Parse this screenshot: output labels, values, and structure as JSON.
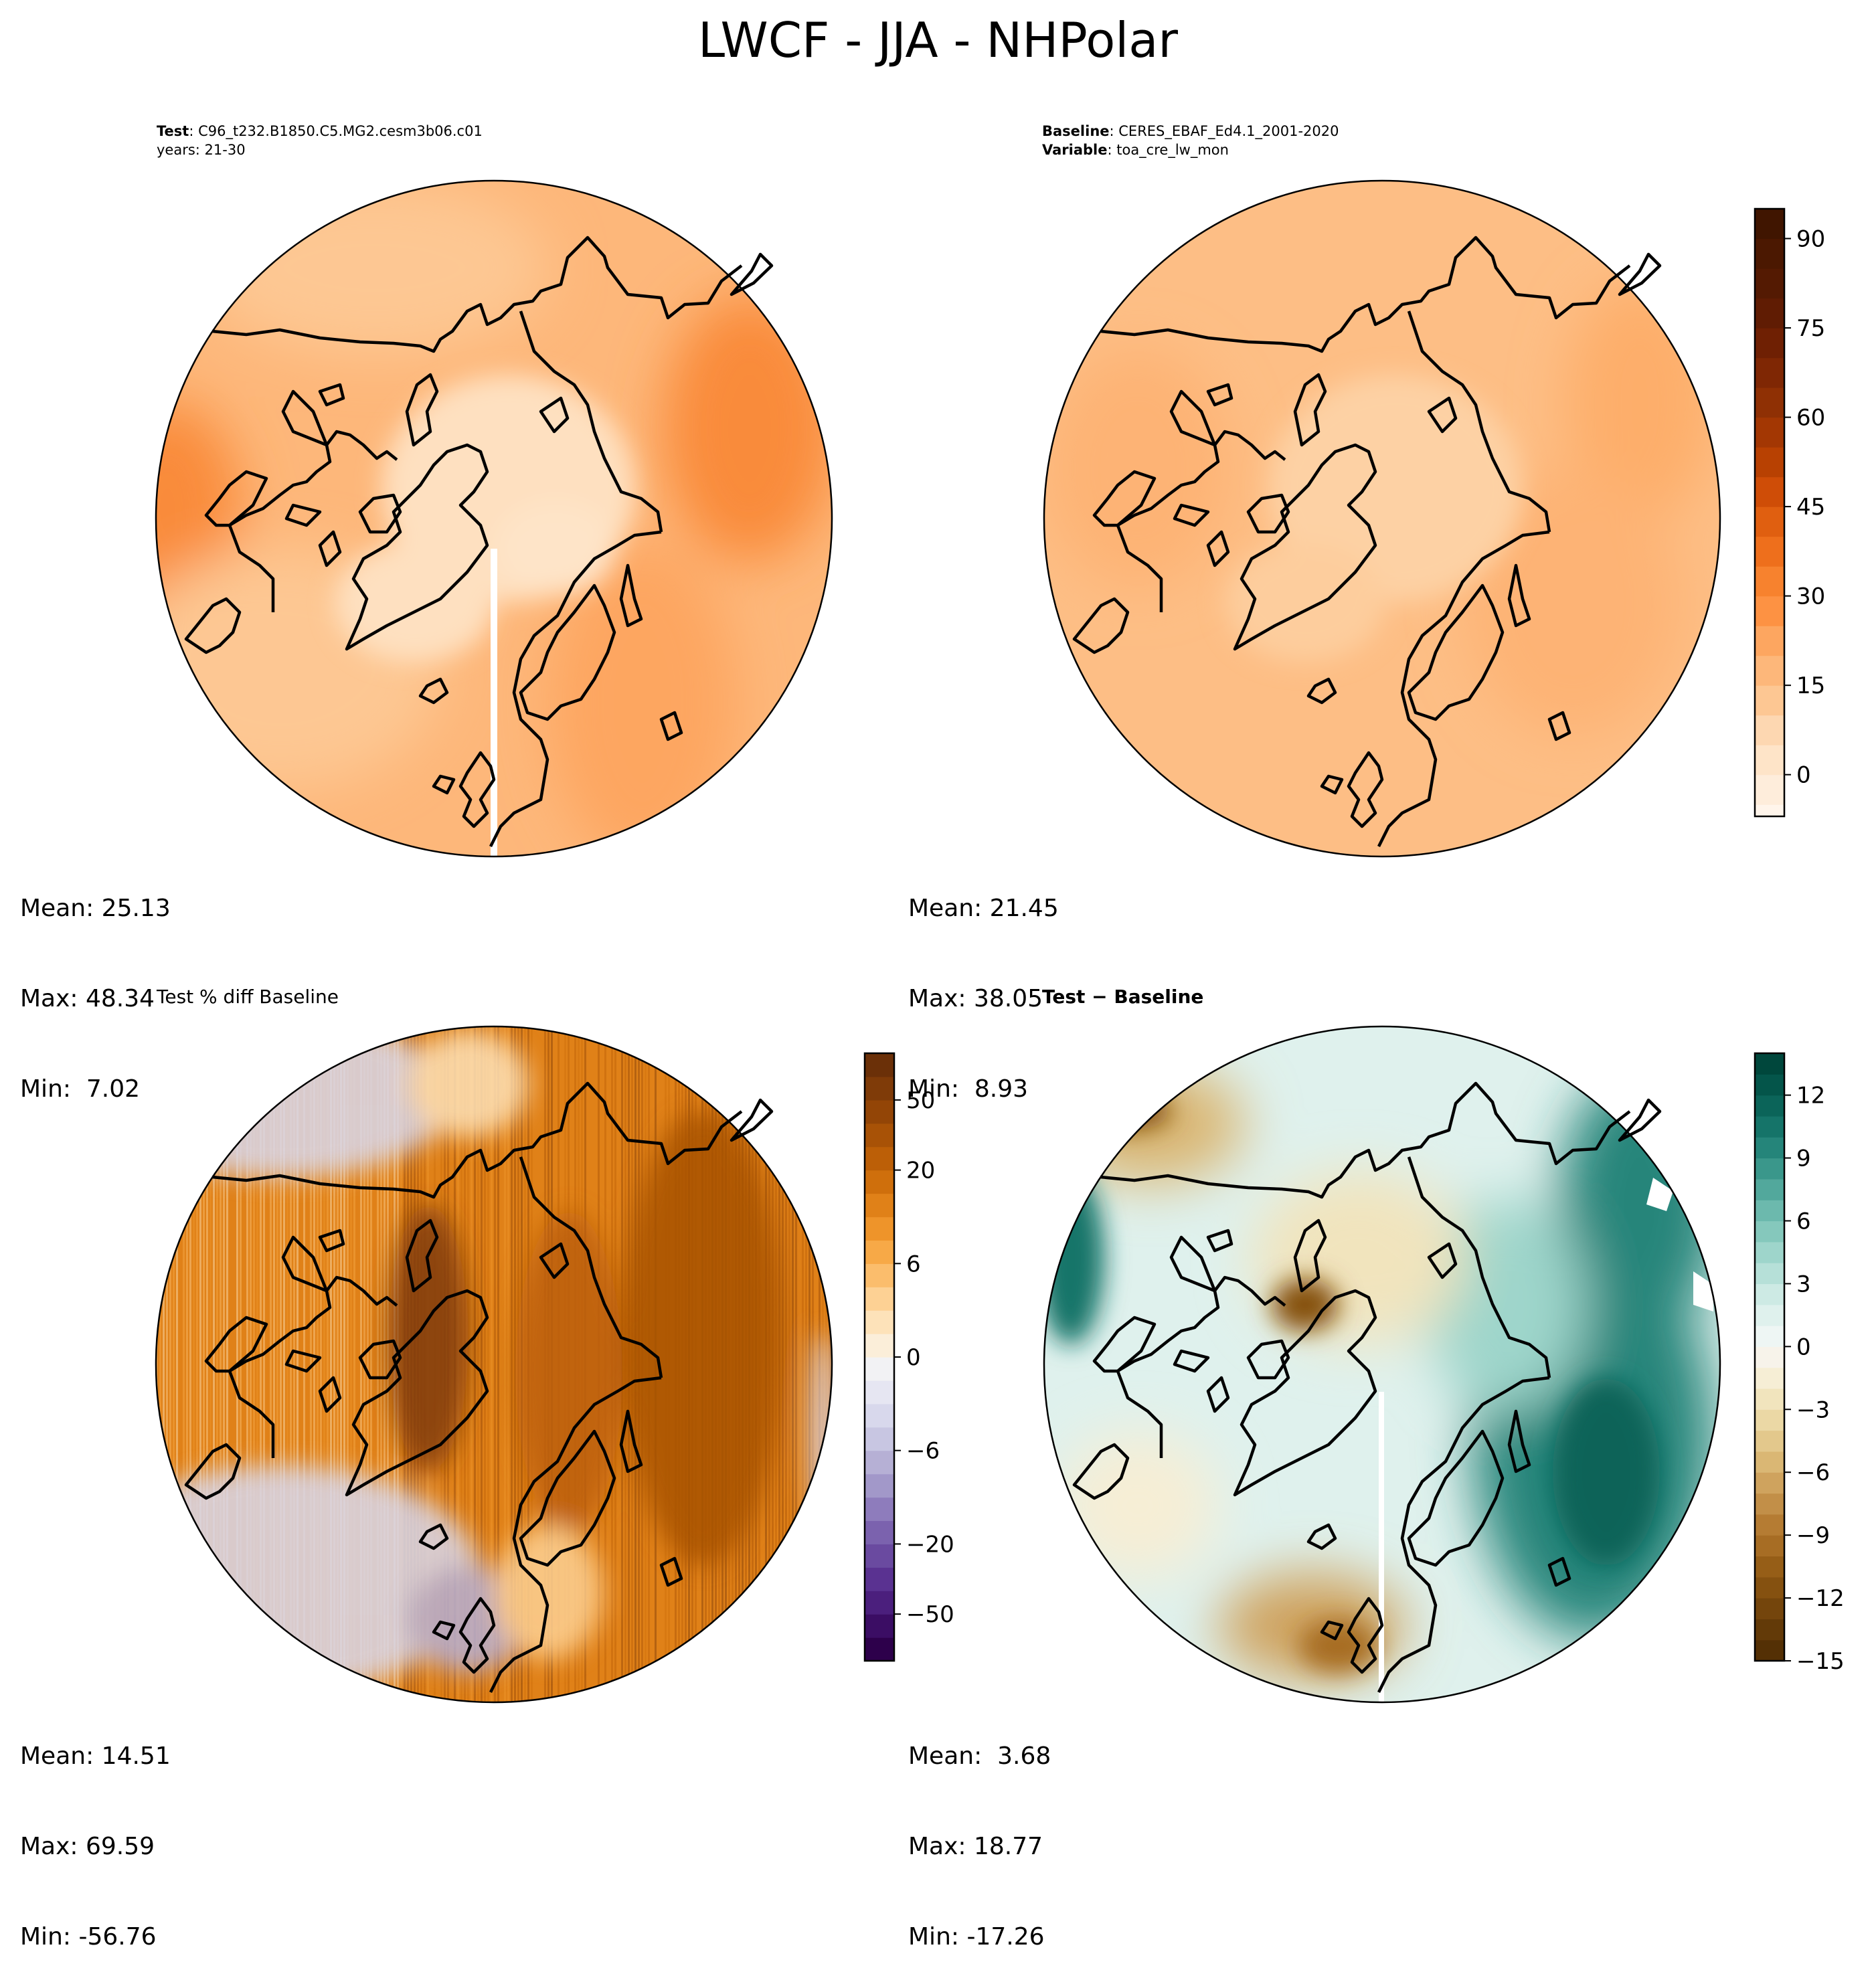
{
  "suptitle": "LWCF - JJA - NHPolar",
  "panels": [
    {
      "id": "test",
      "title_lines": [
        {
          "bold": "Test",
          "text": ": C96_t232.B1850.C5.MG2.cesm3b06.c01"
        },
        {
          "bold": "",
          "text": "years: 21-30"
        }
      ],
      "stats": {
        "mean": "Mean: 25.13",
        "max": "Max: 48.34",
        "min": "Min:  7.02"
      }
    },
    {
      "id": "baseline",
      "title_lines": [
        {
          "bold": "Baseline",
          "text": ": CERES_EBAF_Ed4.1_2001-2020"
        },
        {
          "bold": "Variable",
          "text": ": toa_cre_lw_mon"
        }
      ],
      "stats": {
        "mean": "Mean: 21.45",
        "max": "Max: 38.05",
        "min": "Min:  8.93"
      }
    },
    {
      "id": "pctdiff",
      "title_lines": [
        {
          "bold": "",
          "text": "Test % diff Baseline"
        }
      ],
      "stats": {
        "mean": "Mean: 14.51",
        "max": "Max: 69.59",
        "min": "Min: -56.76"
      }
    },
    {
      "id": "diff",
      "title_lines": [
        {
          "bold": "Test − Baseline",
          "text": ""
        }
      ],
      "stats": {
        "mean": "Mean:  3.68",
        "max": "Max: 18.77",
        "min": "Min: -17.26"
      }
    }
  ],
  "chart_data": [
    {
      "type": "heatmap",
      "panel": "test",
      "projection": "north-polar-stereographic",
      "mean": 25.13,
      "max": 48.34,
      "min": 7.02,
      "colormap": "Oranges",
      "colorbar": {
        "shared_with": "baseline"
      }
    },
    {
      "type": "heatmap",
      "panel": "baseline",
      "projection": "north-polar-stereographic",
      "mean": 21.45,
      "max": 38.05,
      "min": 8.93,
      "colormap": "Oranges",
      "colorbar": {
        "range": [
          -7,
          95
        ],
        "ticks": [
          0,
          15,
          30,
          45,
          60,
          75,
          90
        ],
        "tick_labels": [
          "0",
          "15",
          "30",
          "45",
          "60",
          "75",
          "90"
        ],
        "levels": [
          -7,
          -5,
          0,
          5,
          10,
          15,
          20,
          25,
          30,
          35,
          40,
          45,
          50,
          55,
          60,
          65,
          70,
          75,
          80,
          85,
          90,
          95
        ],
        "colors": [
          "#fff5eb",
          "#feeddb",
          "#fee4c8",
          "#fdd7b1",
          "#fdc793",
          "#fdb77a",
          "#fda660",
          "#fd9243",
          "#f7822e",
          "#ee6f1c",
          "#e05f10",
          "#cf4d07",
          "#b84102",
          "#a33703",
          "#8f3004",
          "#7f2704",
          "#6f2003",
          "#601c03",
          "#541a02",
          "#4b1801",
          "#401500"
        ]
      }
    },
    {
      "type": "heatmap",
      "panel": "pctdiff",
      "projection": "north-polar-stereographic",
      "mean": 14.51,
      "max": 69.59,
      "min": -56.76,
      "colormap": "PuOr_r",
      "colorbar": {
        "levels": [
          -100,
          -75,
          -50,
          -40,
          -30,
          -20,
          -15,
          -10,
          -8,
          -6,
          -4,
          -2,
          -1,
          0,
          1,
          2,
          4,
          6,
          8,
          10,
          15,
          20,
          30,
          40,
          50,
          75,
          100
        ],
        "ticks": [
          -50,
          -20,
          -6,
          0,
          6,
          20,
          50
        ],
        "tick_labels": [
          "−50",
          "−20",
          "−6",
          "0",
          "6",
          "20",
          "50"
        ],
        "colors": [
          "#2d004b",
          "#3b0d64",
          "#4b1f7d",
          "#5a3291",
          "#6a4aa0",
          "#7b62ae",
          "#8e7cbc",
          "#a298c9",
          "#b6b0d5",
          "#c8c6e2",
          "#d8d8ec",
          "#e6e6f2",
          "#f2f2f4",
          "#fbeed9",
          "#fde2b9",
          "#fdd194",
          "#fbbd6c",
          "#f7a947",
          "#ee942a",
          "#e08118",
          "#cf6f0c",
          "#bc5f07",
          "#a85206",
          "#934506",
          "#7f3b08",
          "#6b3008"
        ]
      }
    },
    {
      "type": "heatmap",
      "panel": "diff",
      "projection": "north-polar-stereographic",
      "mean": 3.68,
      "max": 18.77,
      "min": -17.26,
      "colormap": "BrBG",
      "colorbar": {
        "range": [
          -15,
          14
        ],
        "ticks": [
          -15,
          -12,
          -9,
          -6,
          -3,
          0,
          3,
          6,
          9,
          12
        ],
        "tick_labels": [
          "−15",
          "−12",
          "−9",
          "−6",
          "−3",
          "0",
          "3",
          "6",
          "9",
          "12"
        ],
        "levels": [
          -15,
          -14,
          -13,
          -12,
          -11,
          -10,
          -9,
          -8,
          -7,
          -6,
          -5,
          -4,
          -3,
          -2,
          -1,
          0,
          1,
          2,
          3,
          4,
          5,
          6,
          7,
          8,
          9,
          10,
          11,
          12,
          13,
          14
        ],
        "colors": [
          "#543005",
          "#633a08",
          "#74450c",
          "#855110",
          "#965e17",
          "#a76d24",
          "#b57c33",
          "#c28f48",
          "#cfa35e",
          "#dab774",
          "#e3c88c",
          "#ebd8a5",
          "#f1e4bd",
          "#f6eed5",
          "#f7f3ea",
          "#eef6f4",
          "#dff1ed",
          "#cdeae4",
          "#b6e0d8",
          "#9ed5cb",
          "#85c8bc",
          "#6cb9ad",
          "#52a89c",
          "#3a978b",
          "#25857a",
          "#157469",
          "#0b6459",
          "#04554a",
          "#00473c"
        ]
      }
    }
  ]
}
